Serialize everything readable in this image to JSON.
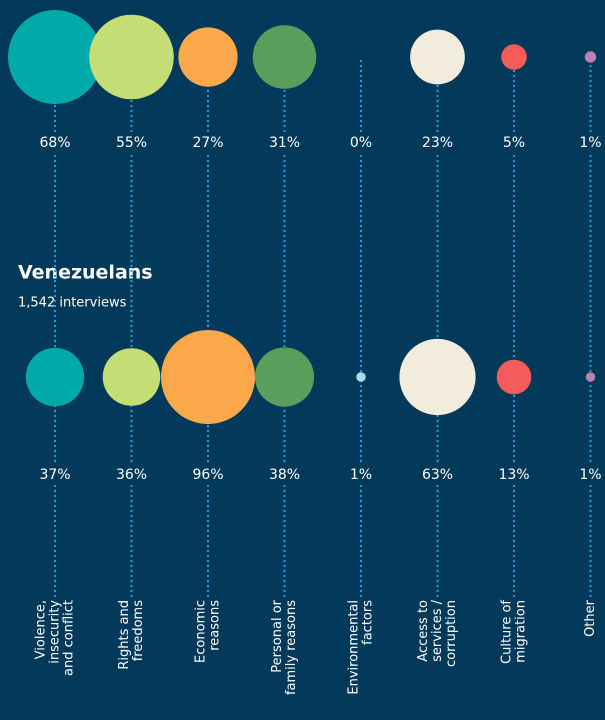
{
  "chart_data": {
    "type": "bubble",
    "categories": [
      [
        "Violence,",
        "insecurity",
        "and conflict"
      ],
      [
        "Rights and",
        "freedoms"
      ],
      [
        "Economic",
        "reasons"
      ],
      [
        "Personal or",
        "family reasons"
      ],
      [
        "Environmental",
        "factors"
      ],
      [
        "Access to",
        "services /",
        "corruption"
      ],
      [
        "Culture of",
        "migration"
      ],
      [
        "Other"
      ]
    ],
    "colors": [
      "#00aaaa",
      "#c4dd74",
      "#fba84b",
      "#5b9e5c",
      "#a9dbe9",
      "#f2ecdc",
      "#f45c5c",
      "#c07fae"
    ],
    "series": [
      {
        "values": [
          68,
          55,
          27,
          31,
          0,
          23,
          5,
          1
        ],
        "value_labels": [
          "68%",
          "55%",
          "27%",
          "31%",
          "0%",
          "23%",
          "5%",
          "1%"
        ]
      },
      {
        "name": "Venezuelans",
        "subtitle": "1,542 interviews",
        "values": [
          37,
          36,
          96,
          38,
          1,
          63,
          13,
          1
        ],
        "value_labels": [
          "37%",
          "36%",
          "96%",
          "38%",
          "1%",
          "63%",
          "13%",
          "1%"
        ]
      }
    ]
  }
}
